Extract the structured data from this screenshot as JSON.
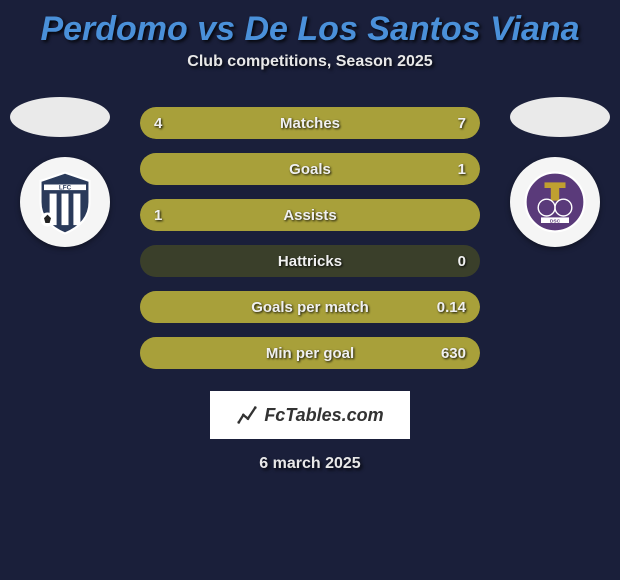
{
  "title": "Perdomo vs De Los Santos Viana",
  "subtitle": "Club competitions, Season 2025",
  "date": "6 march 2025",
  "branding": "FcTables.com",
  "colors": {
    "background": "#1a1f3a",
    "title": "#4a90d9",
    "text": "#e8e8e8",
    "bar_bg": "#3a3f2a",
    "bar_fill": "#a8a03a",
    "ellipse": "#eaeaea",
    "branding_bg": "#ffffff",
    "branding_text": "#333333"
  },
  "bars": [
    {
      "label": "Matches",
      "left_text": "4",
      "right_text": "7",
      "left_fill_pct": 36,
      "right_fill_pct": 64
    },
    {
      "label": "Goals",
      "left_text": "",
      "right_text": "1",
      "left_fill_pct": 0,
      "right_fill_pct": 100
    },
    {
      "label": "Assists",
      "left_text": "1",
      "right_text": "",
      "left_fill_pct": 100,
      "right_fill_pct": 0
    },
    {
      "label": "Hattricks",
      "left_text": "",
      "right_text": "0",
      "left_fill_pct": 0,
      "right_fill_pct": 0
    },
    {
      "label": "Goals per match",
      "left_text": "",
      "right_text": "0.14",
      "left_fill_pct": 0,
      "right_fill_pct": 100
    },
    {
      "label": "Min per goal",
      "left_text": "",
      "right_text": "630",
      "left_fill_pct": 0,
      "right_fill_pct": 100
    }
  ]
}
